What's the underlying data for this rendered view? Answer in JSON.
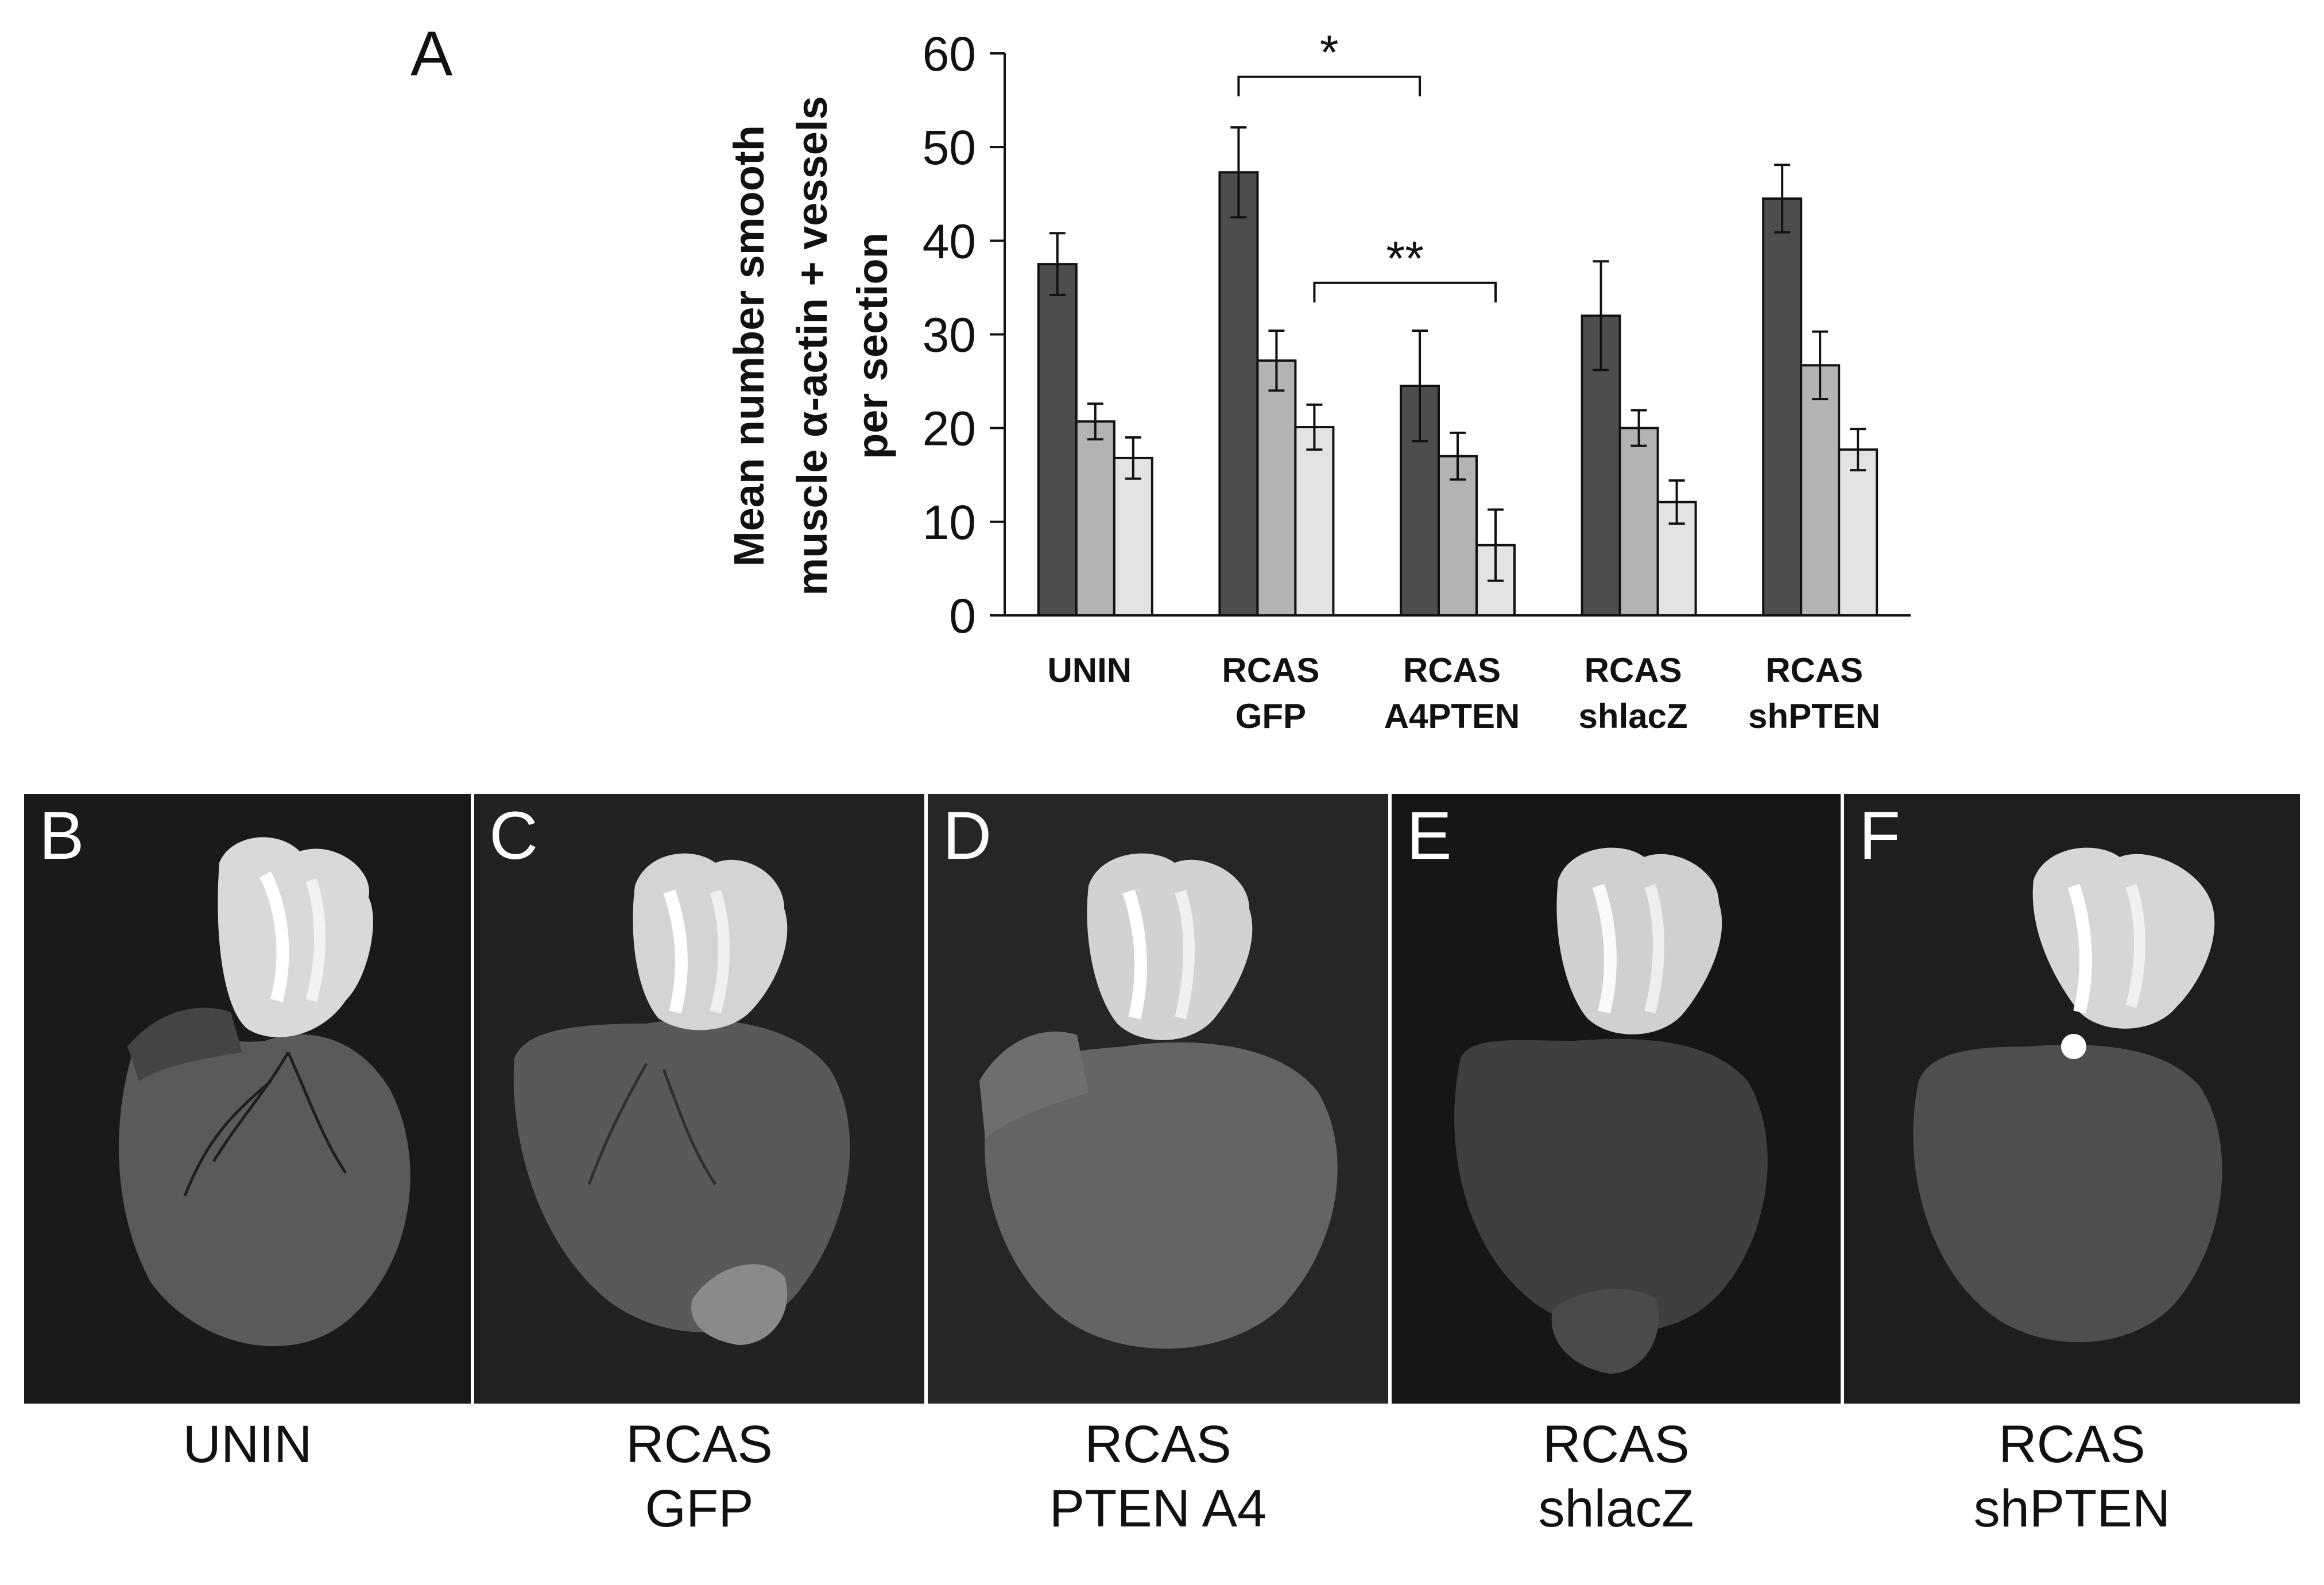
{
  "figure": {
    "panel_a_letter": "A",
    "chart_data": {
      "type": "bar",
      "ylabel_lines": [
        "Mean number smooth",
        "muscle α-actin + vessels",
        "per section"
      ],
      "ylim": [
        0,
        60
      ],
      "yticks": [
        0,
        10,
        20,
        30,
        40,
        50,
        60
      ],
      "categories": [
        {
          "lines": [
            "UNIN"
          ]
        },
        {
          "lines": [
            "RCAS",
            "GFP"
          ]
        },
        {
          "lines": [
            "RCAS",
            "A4PTEN"
          ]
        },
        {
          "lines": [
            "RCAS",
            "shlacZ"
          ]
        },
        {
          "lines": [
            "RCAS",
            "shPTEN"
          ]
        }
      ],
      "series": [
        {
          "color": "#4d4d4d",
          "values": [
            37.5,
            47.3,
            24.5,
            32.0,
            44.5
          ],
          "errors": [
            3.3,
            4.8,
            5.9,
            5.8,
            3.6
          ]
        },
        {
          "color": "#b3b3b3",
          "values": [
            20.7,
            27.2,
            17.0,
            20.0,
            26.7
          ],
          "errors": [
            1.9,
            3.2,
            2.5,
            1.9,
            3.6
          ]
        },
        {
          "color": "#e3e3e3",
          "values": [
            16.8,
            20.1,
            7.5,
            12.1,
            17.7
          ],
          "errors": [
            2.2,
            2.4,
            3.8,
            2.3,
            2.2
          ]
        }
      ],
      "significance": [
        {
          "label": "*",
          "from_group": 1,
          "from_series": 0,
          "to_group": 2,
          "to_series": 0,
          "y": 57.5
        },
        {
          "label": "**",
          "from_group": 1,
          "from_series": 2,
          "to_group": 2,
          "to_series": 2,
          "y": 35.5
        }
      ]
    },
    "photos": [
      {
        "letter": "B",
        "caption_lines": [
          "UNIN"
        ]
      },
      {
        "letter": "C",
        "caption_lines": [
          "RCAS",
          "GFP"
        ]
      },
      {
        "letter": "D",
        "caption_lines": [
          "RCAS",
          "PTEN A4"
        ]
      },
      {
        "letter": "E",
        "caption_lines": [
          "RCAS",
          "shlacZ"
        ]
      },
      {
        "letter": "F",
        "caption_lines": [
          "RCAS",
          "shPTEN"
        ]
      }
    ]
  }
}
